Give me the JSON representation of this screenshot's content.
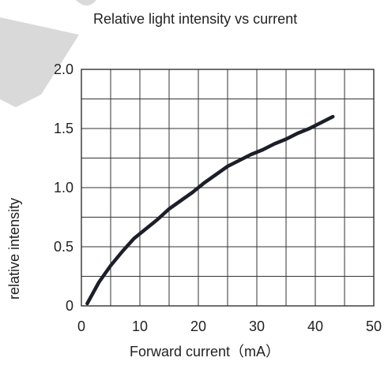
{
  "chart_data": {
    "type": "line",
    "title": "Relative light intensity vs current",
    "xlabel": "Forward current（mA）",
    "ylabel": "relative intensity",
    "xlim": [
      0,
      50
    ],
    "ylim": [
      0,
      2.0
    ],
    "x_ticks": [
      {
        "value": 0,
        "label": "0"
      },
      {
        "value": 10,
        "label": "10"
      },
      {
        "value": 20,
        "label": "20"
      },
      {
        "value": 30,
        "label": "30"
      },
      {
        "value": 40,
        "label": "40"
      },
      {
        "value": 50,
        "label": "50"
      }
    ],
    "y_ticks": [
      {
        "value": 0,
        "label": "0"
      },
      {
        "value": 0.5,
        "label": "0.5"
      },
      {
        "value": 1.0,
        "label": "1.0"
      },
      {
        "value": 1.5,
        "label": "1.5"
      },
      {
        "value": 2.0,
        "label": "2.0"
      }
    ],
    "grid": true,
    "x_grid_step": 5,
    "y_grid_step": 0.25,
    "series": [
      {
        "color": "#1c1f2a",
        "x": [
          1,
          3,
          5,
          7,
          9,
          11,
          13,
          15,
          17,
          19,
          21,
          23,
          25,
          27,
          29,
          31,
          33,
          35,
          37,
          39,
          41,
          43
        ],
        "y": [
          0.02,
          0.2,
          0.34,
          0.46,
          0.57,
          0.65,
          0.73,
          0.82,
          0.89,
          0.96,
          1.04,
          1.11,
          1.18,
          1.23,
          1.28,
          1.32,
          1.37,
          1.41,
          1.46,
          1.5,
          1.55,
          1.6
        ]
      }
    ]
  },
  "decoration": {
    "watermark_color": "#d9d9d9"
  }
}
